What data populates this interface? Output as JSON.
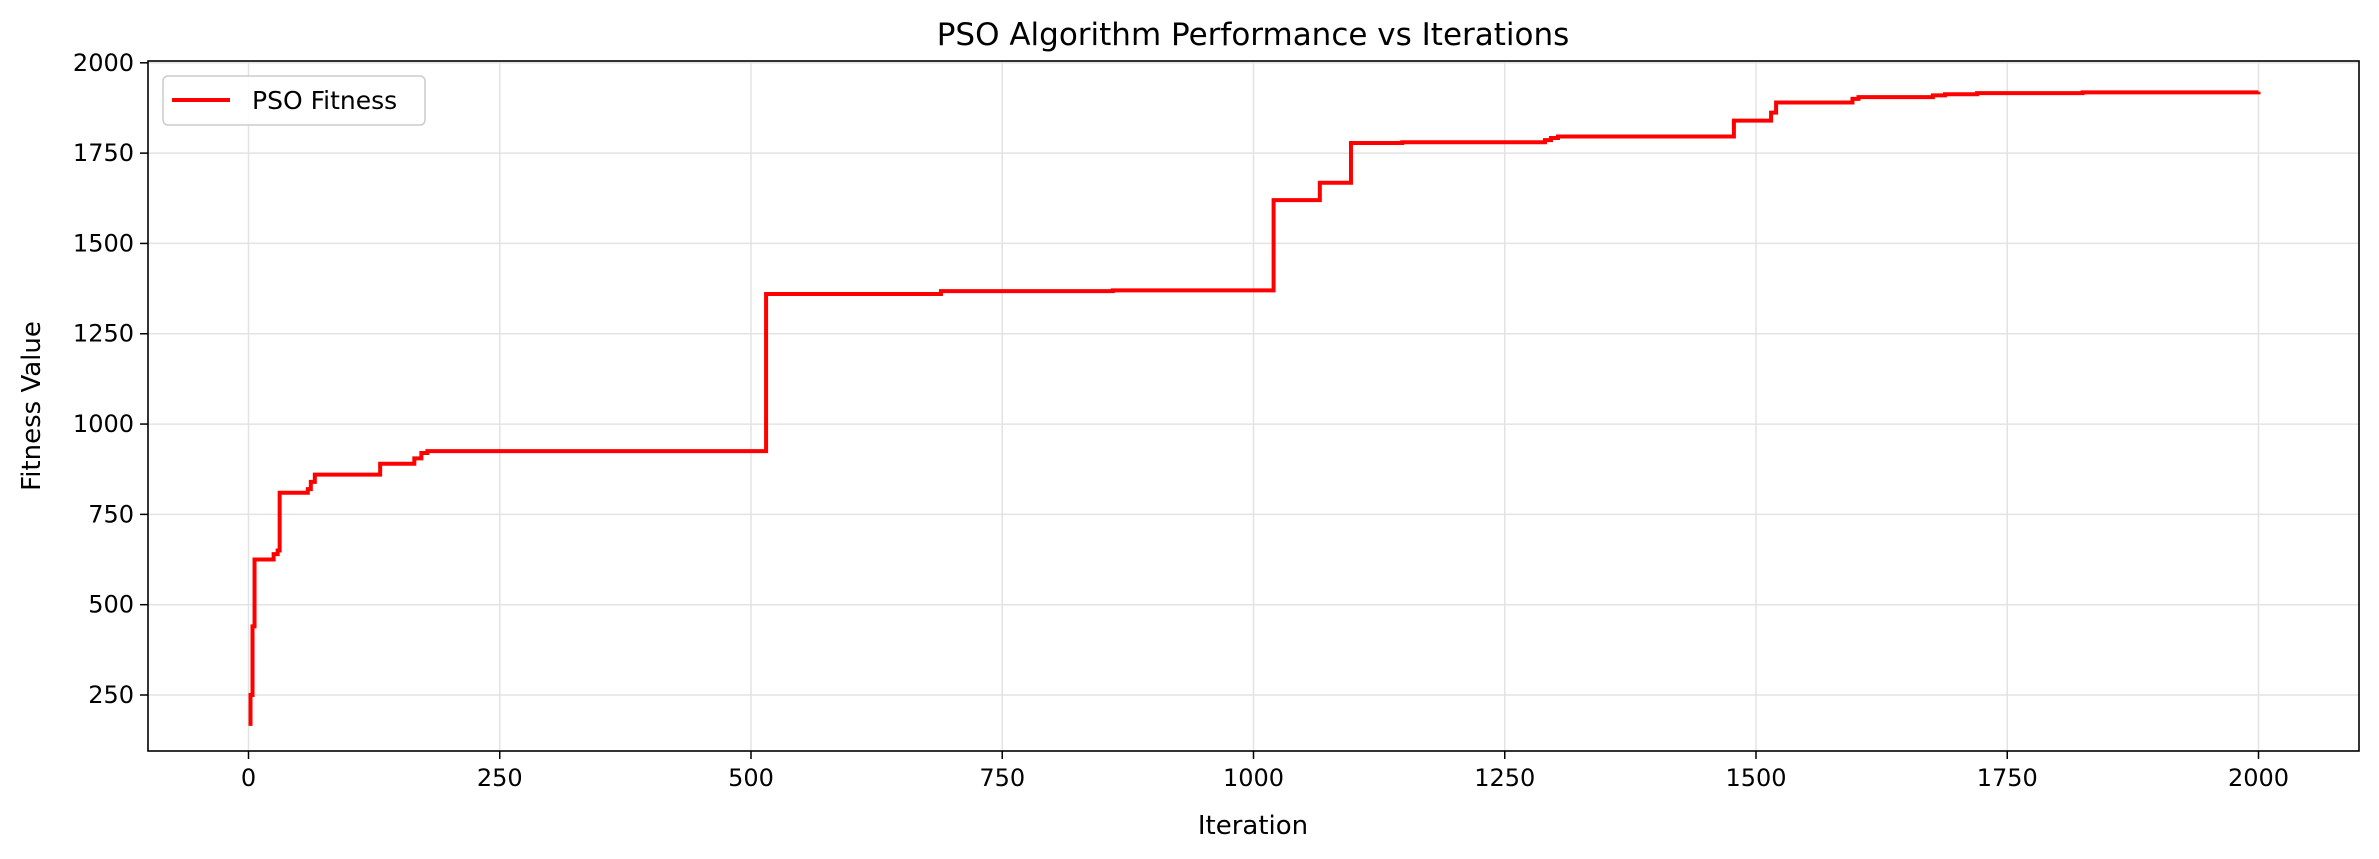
{
  "chart_data": {
    "type": "line",
    "title": "PSO Algorithm Performance vs Iterations",
    "xlabel": "Iteration",
    "ylabel": "Fitness Value",
    "xlim": [
      -100,
      2100
    ],
    "ylim": [
      95,
      2005
    ],
    "xticks": [
      0,
      250,
      500,
      750,
      1000,
      1250,
      1500,
      1750,
      2000
    ],
    "yticks": [
      250,
      500,
      750,
      1000,
      1250,
      1500,
      1750,
      2000
    ],
    "grid": true,
    "legend_position": "top-left",
    "series": [
      {
        "name": "PSO Fitness",
        "color": "#ff0000",
        "step": true,
        "points": [
          [
            0,
            170
          ],
          [
            2,
            250
          ],
          [
            4,
            440
          ],
          [
            6,
            625
          ],
          [
            25,
            640
          ],
          [
            29,
            650
          ],
          [
            31,
            810
          ],
          [
            56,
            810
          ],
          [
            59,
            820
          ],
          [
            62,
            840
          ],
          [
            66,
            860
          ],
          [
            128,
            860
          ],
          [
            131,
            890
          ],
          [
            162,
            890
          ],
          [
            165,
            905
          ],
          [
            172,
            920
          ],
          [
            178,
            925
          ],
          [
            512,
            925
          ],
          [
            515,
            1360
          ],
          [
            687,
            1360
          ],
          [
            689,
            1368
          ],
          [
            860,
            1370
          ],
          [
            1017,
            1370
          ],
          [
            1020,
            1620
          ],
          [
            1063,
            1620
          ],
          [
            1066,
            1668
          ],
          [
            1094,
            1668
          ],
          [
            1097,
            1778
          ],
          [
            1148,
            1780
          ],
          [
            1285,
            1780
          ],
          [
            1290,
            1786
          ],
          [
            1296,
            1792
          ],
          [
            1303,
            1796
          ],
          [
            1475,
            1796
          ],
          [
            1478,
            1840
          ],
          [
            1512,
            1840
          ],
          [
            1515,
            1862
          ],
          [
            1520,
            1890
          ],
          [
            1590,
            1890
          ],
          [
            1596,
            1900
          ],
          [
            1602,
            1905
          ],
          [
            1670,
            1905
          ],
          [
            1676,
            1910
          ],
          [
            1688,
            1913
          ],
          [
            1715,
            1913
          ],
          [
            1720,
            1916
          ],
          [
            1820,
            1916
          ],
          [
            1825,
            1918
          ],
          [
            2000,
            1920
          ]
        ]
      }
    ]
  }
}
